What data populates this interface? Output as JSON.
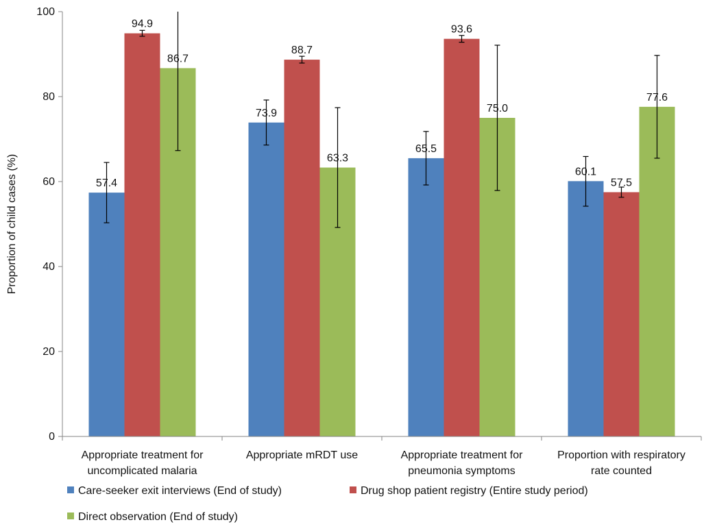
{
  "chart_data": {
    "type": "bar",
    "ylabel": "Proportion of child cases (%)",
    "ylim": [
      0,
      100
    ],
    "yticks": [
      0,
      20,
      40,
      60,
      80,
      100
    ],
    "grid": false,
    "legend_position": "bottom",
    "categories": [
      [
        "Appropriate treatment for",
        "uncomplicated malaria"
      ],
      [
        "Appropriate mRDT use"
      ],
      [
        "Appropriate treatment for",
        "pneumonia symptoms"
      ],
      [
        "Proportion with respiratory",
        "rate counted"
      ]
    ],
    "series": [
      {
        "name": "Care-seeker exit interviews (End of study)",
        "color": "#4F81BD",
        "values": [
          57.4,
          73.9,
          65.5,
          60.1
        ],
        "labels": [
          "57.4",
          "73.9",
          "65.5",
          "60.1"
        ],
        "error_low": [
          50.3,
          68.6,
          59.2,
          54.2
        ],
        "error_high": [
          64.5,
          79.2,
          71.8,
          65.9
        ]
      },
      {
        "name": "Drug shop patient registry (Entire study period)",
        "color": "#C0504D",
        "values": [
          94.9,
          88.7,
          93.6,
          57.5
        ],
        "labels": [
          "94.9",
          "88.7",
          "93.6",
          "57.5"
        ],
        "error_low": [
          94.2,
          87.9,
          92.8,
          56.3
        ],
        "error_high": [
          95.6,
          89.5,
          94.4,
          58.7
        ]
      },
      {
        "name": "Direct observation (End of study)",
        "color": "#9BBB59",
        "values": [
          86.7,
          63.3,
          75.0,
          77.6
        ],
        "labels": [
          "86.7",
          "63.3",
          "75.0",
          "77.6"
        ],
        "error_low": [
          67.3,
          49.2,
          57.9,
          65.5
        ],
        "error_high": [
          100,
          77.4,
          92.1,
          89.7
        ]
      }
    ]
  }
}
